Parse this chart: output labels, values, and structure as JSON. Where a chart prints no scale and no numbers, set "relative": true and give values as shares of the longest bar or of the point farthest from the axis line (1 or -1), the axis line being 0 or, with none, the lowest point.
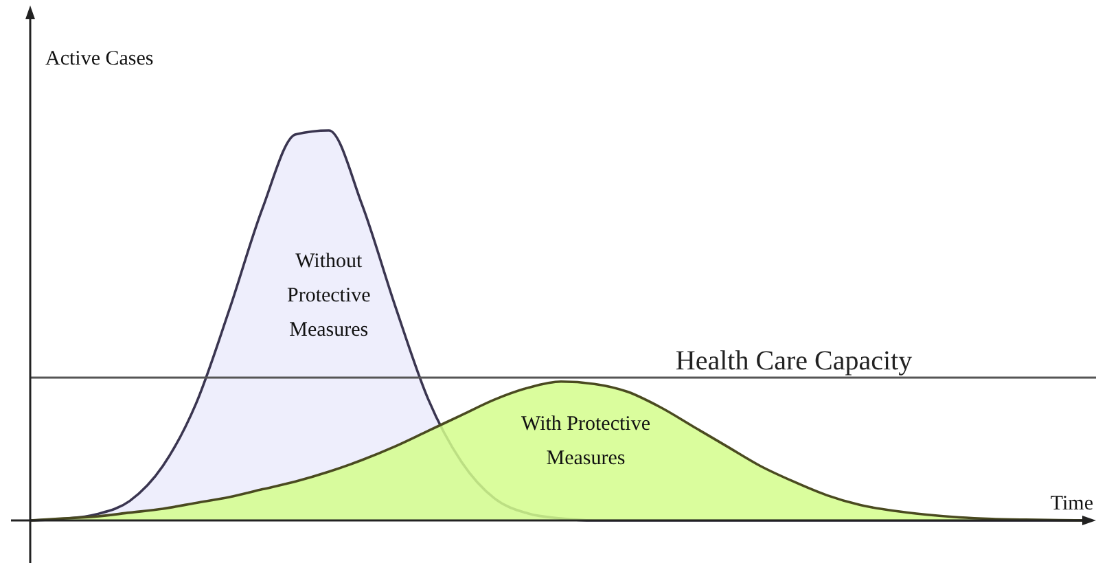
{
  "chart_data": {
    "type": "area",
    "relative": true,
    "xlabel": "Time",
    "ylabel": "Active Cases",
    "categories": [
      null,
      null,
      null,
      null,
      null,
      null,
      null,
      null,
      null,
      null,
      null,
      null,
      null,
      null,
      null,
      null,
      null,
      null,
      null,
      null,
      null,
      null,
      null,
      null,
      null,
      null,
      null,
      null,
      null,
      null,
      null,
      null,
      null
    ],
    "series": [
      {
        "name": "Without\nProtective\nMeasures",
        "color": "#eeeefc",
        "values": [
          0,
          0.004,
          0.016,
          0.05,
          0.14,
          0.3,
          0.54,
          0.8,
          0.99,
          1,
          0.81,
          0.55,
          0.31,
          0.15,
          0.056,
          0.018,
          0.005,
          0,
          0,
          0,
          0,
          0,
          0,
          0,
          0,
          0,
          0,
          0,
          0,
          0,
          0,
          0,
          0
        ]
      },
      {
        "name": "With Protective\nMeasures",
        "color": "#d4fd8c",
        "values": [
          0,
          0.005,
          0.01,
          0.02,
          0.03,
          0.045,
          0.06,
          0.08,
          0.1,
          0.125,
          0.155,
          0.19,
          0.23,
          0.27,
          0.31,
          0.34,
          0.356,
          0.35,
          0.33,
          0.29,
          0.24,
          0.19,
          0.14,
          0.1,
          0.065,
          0.04,
          0.025,
          0.015,
          0.008,
          0.004,
          0.002,
          0.001,
          0
        ]
      }
    ],
    "ref_lines": [
      {
        "axis": "y",
        "value": 0.366,
        "label": "Health Care Capacity",
        "color": "#555555"
      }
    ],
    "legend": false
  }
}
